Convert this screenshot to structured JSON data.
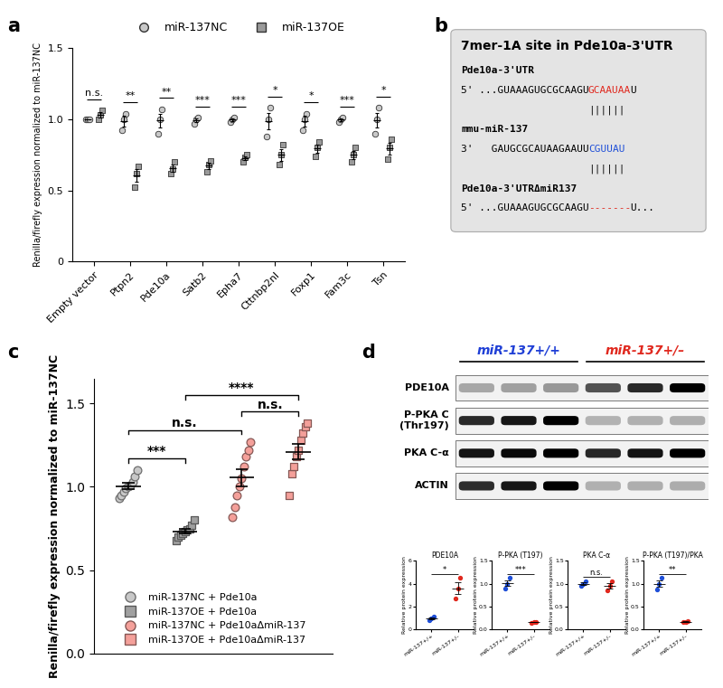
{
  "panel_labels": [
    "a",
    "b",
    "c",
    "d"
  ],
  "chart_data": [
    {
      "type": "scatter",
      "ylabel": "Renilla/firefly expression normalized to miR-137NC",
      "categories": [
        "Empty vector",
        "Ptpn2",
        "Pde10a",
        "Satb2",
        "Epha7",
        "Cttnbp2nl",
        "Foxp1",
        "Fam3c",
        "Tsn"
      ],
      "series": [
        {
          "name": "miR-137NC",
          "color": "#c8c8c8",
          "marker": "o",
          "values": [
            [
              1.0,
              1.0,
              1.0
            ],
            [
              0.92,
              1.0,
              1.04
            ],
            [
              0.9,
              1.0,
              1.07
            ],
            [
              0.97,
              1.0,
              1.01
            ],
            [
              0.98,
              1.0,
              1.01
            ],
            [
              0.88,
              1.0,
              1.08
            ],
            [
              0.92,
              1.0,
              1.04
            ],
            [
              0.98,
              1.0,
              1.01
            ],
            [
              0.9,
              1.0,
              1.08
            ]
          ]
        },
        {
          "name": "miR-137OE",
          "color": "#9a9a9a",
          "marker": "s",
          "values": [
            [
              1.0,
              1.03,
              1.06
            ],
            [
              0.52,
              0.62,
              0.67
            ],
            [
              0.62,
              0.65,
              0.7
            ],
            [
              0.63,
              0.68,
              0.71
            ],
            [
              0.7,
              0.73,
              0.75
            ],
            [
              0.68,
              0.75,
              0.82
            ],
            [
              0.74,
              0.8,
              0.84
            ],
            [
              0.7,
              0.75,
              0.8
            ],
            [
              0.72,
              0.8,
              0.86
            ]
          ]
        }
      ],
      "significance": [
        "n.s.",
        "**",
        "**",
        "***",
        "***",
        "*",
        "*",
        "***",
        "*"
      ],
      "ylim": [
        0,
        1.5
      ],
      "yticks": [
        0,
        0.5,
        {
          "value": 1,
          "label": "1.0"
        },
        1.5
      ],
      "legend": "upper center"
    },
    {
      "type": "scatter",
      "ylabel": "Renilla/firefly expression normalized to miR-137NC",
      "tick_labels": "y",
      "series": [
        {
          "name": "miR-137NC + Pde10a",
          "color": "#c8c8c8",
          "marker": "o",
          "values": [
            0.93,
            0.95,
            0.97,
            0.99,
            1.0,
            1.01,
            1.03,
            1.06,
            1.1
          ]
        },
        {
          "name": "miR-137OE + Pde10a",
          "color": "#a0a0a0",
          "marker": "s",
          "values": [
            0.68,
            0.7,
            0.71,
            0.72,
            0.73,
            0.74,
            0.75,
            0.77,
            0.8
          ]
        },
        {
          "name": "miR-137NC + Pde10aΔmiR-137",
          "color": "#f4a09a",
          "marker": "o",
          "values": [
            0.82,
            0.88,
            0.95,
            1.0,
            1.05,
            1.12,
            1.18,
            1.22,
            1.27
          ]
        },
        {
          "name": "miR-137OE + Pde10aΔmiR-137",
          "color": "#f4a09a",
          "marker": "s",
          "values": [
            0.95,
            1.08,
            1.12,
            1.18,
            1.22,
            1.28,
            1.32,
            1.36,
            1.38
          ]
        }
      ],
      "comparisons": [
        {
          "groups": [
            0,
            1
          ],
          "label": "***"
        },
        {
          "groups": [
            0,
            2
          ],
          "label": "n.s."
        },
        {
          "groups": [
            2,
            3
          ],
          "label": "n.s."
        },
        {
          "groups": [
            1,
            3
          ],
          "label": "****"
        }
      ],
      "ylim": [
        0,
        1.65
      ],
      "yticks": [
        {
          "value": 0,
          "label": "0.0"
        },
        0.5,
        {
          "value": 1,
          "label": "1.0"
        },
        1.5
      ],
      "legend": "lower center"
    },
    {
      "type": "scatter",
      "title": "PDE10A",
      "ylabel": "Relative protein expression",
      "categories": [
        "miR-137+/+",
        "miR-137+/–"
      ],
      "colors": [
        "#1f4fd8",
        "#e0281e"
      ],
      "values": [
        [
          0.85,
          1.0,
          1.15
        ],
        [
          2.7,
          3.6,
          4.5
        ]
      ],
      "ylim": [
        0,
        6
      ],
      "yticks": [
        0,
        2,
        4,
        6
      ],
      "significance": "*"
    },
    {
      "type": "scatter",
      "title": "P-PKA (T197)",
      "ylabel": "Relative protein expression",
      "categories": [
        "miR-137+/+",
        "miR-137+/–"
      ],
      "colors": [
        "#1f4fd8",
        "#e0281e"
      ],
      "values": [
        [
          0.9,
          1.0,
          1.12
        ],
        [
          0.15,
          0.16,
          0.17
        ]
      ],
      "ylim": [
        0,
        1.5
      ],
      "yticks": [
        {
          "value": 0,
          "label": "0.0"
        },
        0.5,
        {
          "value": 1,
          "label": "1.0"
        },
        1.5
      ],
      "significance": "***"
    },
    {
      "type": "scatter",
      "title": "PKA C-α",
      "ylabel": "Relative protein expression",
      "categories": [
        "miR-137+/+",
        "miR-137+/–"
      ],
      "colors": [
        "#1f4fd8",
        "#e0281e"
      ],
      "values": [
        [
          0.95,
          1.0,
          1.05
        ],
        [
          0.85,
          0.95,
          1.05
        ]
      ],
      "ylim": [
        0,
        1.5
      ],
      "yticks": [
        {
          "value": 0,
          "label": "0.0"
        },
        0.5,
        {
          "value": 1,
          "label": "1.0"
        },
        1.5
      ],
      "significance": "n.s."
    },
    {
      "type": "scatter",
      "title": "P-PKA (T197)/PKA",
      "ylabel": "Relative protein expression",
      "categories": [
        "miR-137+/+",
        "miR-137+/–"
      ],
      "colors": [
        "#1f4fd8",
        "#e0281e"
      ],
      "values": [
        [
          0.88,
          1.0,
          1.12
        ],
        [
          0.16,
          0.17,
          0.18
        ]
      ],
      "ylim": [
        0,
        1.5
      ],
      "yticks": [
        {
          "value": 0,
          "label": "0.0"
        },
        0.5,
        {
          "value": 1,
          "label": "1.0"
        },
        1.5
      ],
      "significance": "**"
    }
  ],
  "diagram": {
    "title": "7mer-1A site in Pde10a-3'UTR",
    "lines": [
      {
        "text": "Pde10a-3'UTR"
      },
      {
        "segments": [
          {
            "text": "5' ...GUAAAGUGCGCAAGU",
            "color": "#000000"
          },
          {
            "text": "GCAAUAA",
            "color": "#e0281e"
          },
          {
            "text": "U",
            "color": "#000000"
          }
        ]
      },
      {
        "pairs": "||||||"
      },
      {
        "text": "mmu-miR-137"
      },
      {
        "segments": [
          {
            "text": "3'   GAUGCGCAUAAGAAUU",
            "color": "#000000"
          },
          {
            "text": "CGUUAU",
            "color": "#1f4fd8"
          }
        ]
      },
      {
        "pairs": "||||||"
      },
      {
        "text": "Pde10a-3'UTRΔmiR137"
      },
      {
        "segments": [
          {
            "text": "5' ...GUAAAGUGCGCAAGU",
            "color": "#000000"
          },
          {
            "text": "-------",
            "color": "#e0281e"
          },
          {
            "text": "U...",
            "color": "#000000"
          }
        ]
      }
    ]
  },
  "blot": {
    "groups": [
      {
        "label": "miR-137+/+",
        "color": "#1f3fd6"
      },
      {
        "label": "miR-137+/–",
        "color": "#e0281e"
      }
    ],
    "rows": [
      "PDE10A",
      "P-PKA C\n(Thr197)",
      "PKA C-α",
      "ACTIN"
    ]
  }
}
